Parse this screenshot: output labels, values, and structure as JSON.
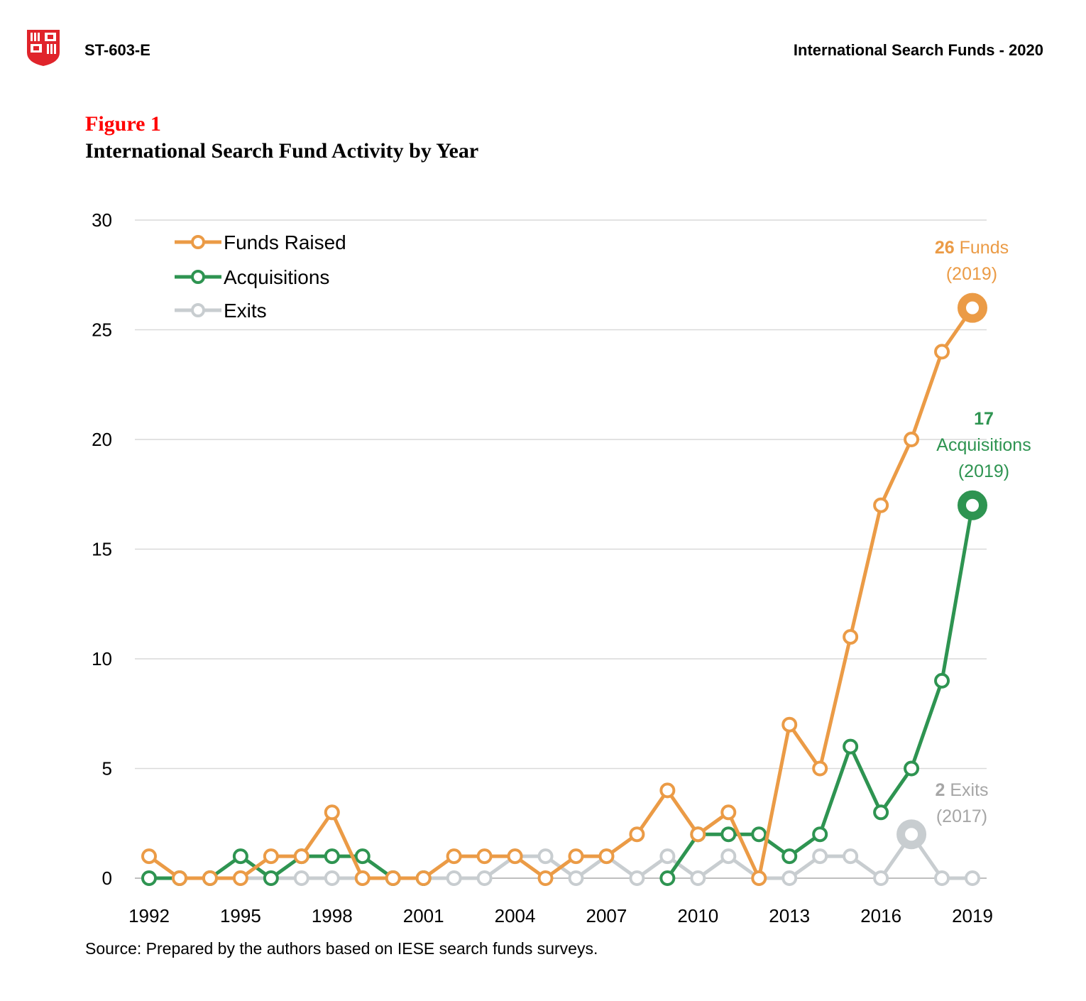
{
  "header": {
    "doc_code": "ST-603-E",
    "doc_title": "International Search Funds - 2020"
  },
  "figure": {
    "label": "Figure 1",
    "title": "International Search Fund Activity by Year"
  },
  "source": "Source: Prepared by the authors based on IESE search funds surveys.",
  "logo_icon": "iese-shield-icon",
  "chart_data": {
    "type": "line",
    "title": "International Search Fund Activity by Year",
    "xlabel": "",
    "ylabel": "",
    "ylim": [
      0,
      30
    ],
    "yticks": [
      0,
      5,
      10,
      15,
      20,
      25,
      30
    ],
    "xticks": [
      1992,
      1995,
      1998,
      2001,
      2004,
      2007,
      2010,
      2013,
      2016,
      2019
    ],
    "grid": true,
    "legend_position": "top-left",
    "x": [
      1992,
      1993,
      1994,
      1995,
      1996,
      1997,
      1998,
      1999,
      2000,
      2001,
      2002,
      2003,
      2004,
      2005,
      2006,
      2007,
      2008,
      2009,
      2010,
      2011,
      2012,
      2013,
      2014,
      2015,
      2016,
      2017,
      2018,
      2019
    ],
    "series": [
      {
        "name": "Funds Raised",
        "color": "#EB9B46",
        "values": [
          1,
          0,
          0,
          0,
          1,
          1,
          3,
          0,
          0,
          0,
          1,
          1,
          1,
          0,
          1,
          1,
          2,
          4,
          2,
          3,
          0,
          7,
          5,
          11,
          17,
          20,
          24,
          26
        ]
      },
      {
        "name": "Acquisitions",
        "color": "#2E9451",
        "values": [
          0,
          0,
          0,
          1,
          0,
          1,
          1,
          1,
          0,
          0,
          null,
          null,
          null,
          null,
          null,
          null,
          null,
          0,
          2,
          2,
          2,
          1,
          2,
          6,
          3,
          5,
          9,
          17
        ]
      },
      {
        "name": "Exits",
        "color": "#C8CDD0",
        "values": [
          0,
          0,
          0,
          0,
          0,
          0,
          0,
          0,
          0,
          0,
          0,
          0,
          1,
          1,
          0,
          1,
          0,
          1,
          0,
          1,
          0,
          0,
          1,
          1,
          0,
          2,
          0,
          0
        ]
      }
    ],
    "annotations": [
      {
        "series": "Funds Raised",
        "year": 2019,
        "value": 26,
        "bold": "26",
        "rest": " Funds",
        "line2": "(2019)",
        "line3": ""
      },
      {
        "series": "Acquisitions",
        "year": 2019,
        "value": 17,
        "bold": "17",
        "rest": "",
        "line2": "Acquisitions",
        "line3": "(2019)"
      },
      {
        "series": "Exits",
        "year": 2017,
        "value": 2,
        "bold": "2",
        "rest": " Exits",
        "line2": "(2017)",
        "line3": ""
      }
    ]
  }
}
